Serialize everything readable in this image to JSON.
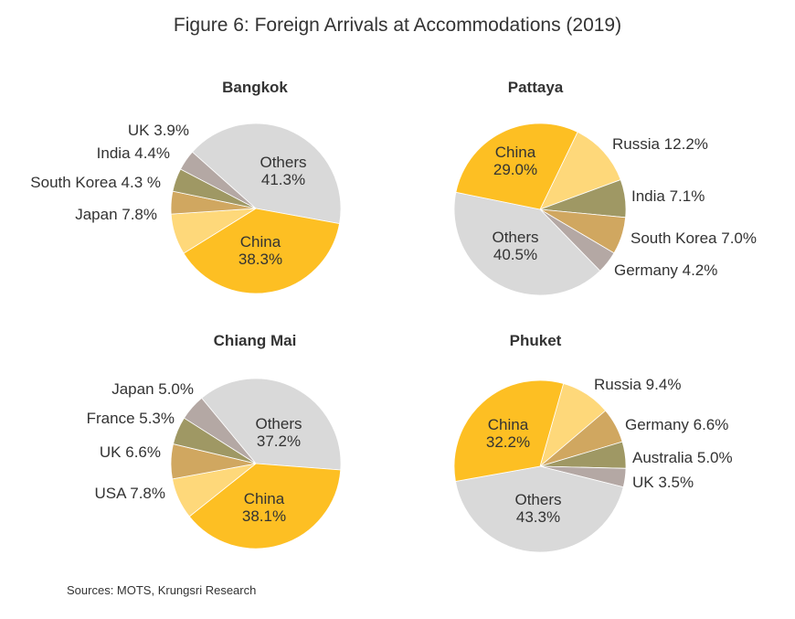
{
  "title": "Figure 6: Foreign Arrivals at Accommodations (2019)",
  "source": "Sources: MOTS, Krungsri Research",
  "colors": {
    "China": "#fdbf23",
    "Others": "#d9d9d9",
    "light-yellow": "#fed87a",
    "tan": "#d0a760",
    "olive": "#9f9864",
    "mauve": "#b4a8a4"
  },
  "chart_data": [
    {
      "type": "pie",
      "title": "Bangkok",
      "slices": [
        {
          "name": "Others",
          "value": 41.3,
          "label": "Others",
          "pct": "41.3%",
          "color": "#d9d9d9"
        },
        {
          "name": "China",
          "value": 38.3,
          "label": "China",
          "pct": "38.3%",
          "color": "#fdbf23"
        },
        {
          "name": "Japan",
          "value": 7.8,
          "label": "Japan 7.8%",
          "color": "#fed87a"
        },
        {
          "name": "South Korea",
          "value": 4.3,
          "label": "South Korea 4.3 %",
          "color": "#d0a760"
        },
        {
          "name": "India",
          "value": 4.4,
          "label": "India 4.4%",
          "color": "#9f9864"
        },
        {
          "name": "UK",
          "value": 3.9,
          "label": "UK 3.9%",
          "color": "#b4a8a4"
        }
      ]
    },
    {
      "type": "pie",
      "title": "Pattaya",
      "slices": [
        {
          "name": "Russia",
          "value": 12.2,
          "label": "Russia 12.2%",
          "color": "#fed87a"
        },
        {
          "name": "India",
          "value": 7.1,
          "label": "India 7.1%",
          "color": "#9f9864"
        },
        {
          "name": "South Korea",
          "value": 7.0,
          "label": "South Korea 7.0%",
          "color": "#d0a760"
        },
        {
          "name": "Germany",
          "value": 4.2,
          "label": "Germany 4.2%",
          "color": "#b4a8a4"
        },
        {
          "name": "Others",
          "value": 40.5,
          "label": "Others",
          "pct": "40.5%",
          "color": "#d9d9d9"
        },
        {
          "name": "China",
          "value": 29.0,
          "label": "China",
          "pct": "29.0%",
          "color": "#fdbf23"
        }
      ]
    },
    {
      "type": "pie",
      "title": "Chiang Mai",
      "slices": [
        {
          "name": "Others",
          "value": 37.2,
          "label": "Others",
          "pct": "37.2%",
          "color": "#d9d9d9"
        },
        {
          "name": "China",
          "value": 38.1,
          "label": "China",
          "pct": "38.1%",
          "color": "#fdbf23"
        },
        {
          "name": "USA",
          "value": 7.8,
          "label": "USA 7.8%",
          "color": "#fed87a"
        },
        {
          "name": "UK",
          "value": 6.6,
          "label": "UK 6.6%",
          "color": "#d0a760"
        },
        {
          "name": "France",
          "value": 5.3,
          "label": "France 5.3%",
          "color": "#9f9864"
        },
        {
          "name": "Japan",
          "value": 5.0,
          "label": "Japan 5.0%",
          "color": "#b4a8a4"
        }
      ]
    },
    {
      "type": "pie",
      "title": "Phuket",
      "slices": [
        {
          "name": "Russia",
          "value": 9.4,
          "label": "Russia 9.4%",
          "color": "#fed87a"
        },
        {
          "name": "Germany",
          "value": 6.6,
          "label": "Germany 6.6%",
          "color": "#d0a760"
        },
        {
          "name": "Australia",
          "value": 5.0,
          "label": "Australia 5.0%",
          "color": "#9f9864"
        },
        {
          "name": "UK",
          "value": 3.5,
          "label": "UK 3.5%",
          "color": "#b4a8a4"
        },
        {
          "name": "Others",
          "value": 43.3,
          "label": "Others",
          "pct": "43.3%",
          "color": "#d9d9d9"
        },
        {
          "name": "China",
          "value": 32.2,
          "label": "China",
          "pct": "32.2%",
          "color": "#fdbf23"
        }
      ]
    }
  ]
}
